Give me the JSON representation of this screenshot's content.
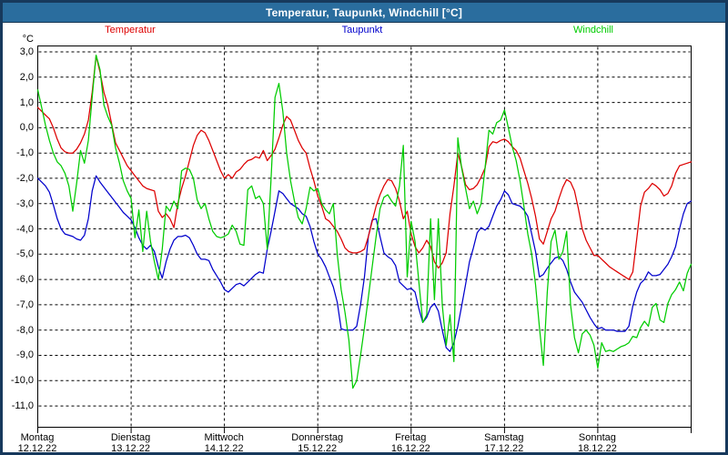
{
  "window": {
    "title": "Temperatur, Taupunkt, Windchill [°C]"
  },
  "colors": {
    "titlebar": "#2a6d9e",
    "titlebar_text": "#ffffff",
    "frame": "#17395c",
    "plot_border": "#000000",
    "grid": "#000000",
    "background": "#ffffff"
  },
  "legend": [
    {
      "label": "Temperatur",
      "color": "#dd0000"
    },
    {
      "label": "Taupunkt",
      "color": "#0000cc"
    },
    {
      "label": "Windchill",
      "color": "#00cc00"
    }
  ],
  "axes": {
    "unit_label": "°C",
    "y_ticks": [
      {
        "label": "3,0",
        "value": 3
      },
      {
        "label": "2,0",
        "value": 2
      },
      {
        "label": "1,0",
        "value": 1
      },
      {
        "label": "0,0",
        "value": 0
      },
      {
        "label": "-1,0",
        "value": -1
      },
      {
        "label": "-2,0",
        "value": -2
      },
      {
        "label": "-3,0",
        "value": -3
      },
      {
        "label": "-4,0",
        "value": -4
      },
      {
        "label": "-5,0",
        "value": -5
      },
      {
        "label": "-6,0",
        "value": -6
      },
      {
        "label": "-7,0",
        "value": -7
      },
      {
        "label": "-8,0",
        "value": -8
      },
      {
        "label": "-9,0",
        "value": -9
      },
      {
        "label": "-10,0",
        "value": -10
      },
      {
        "label": "-11,0",
        "value": -11
      }
    ],
    "x_days": [
      {
        "name": "Montag",
        "date": "12.12.22"
      },
      {
        "name": "Dienstag",
        "date": "13.12.22"
      },
      {
        "name": "Mittwoch",
        "date": "14.12.22"
      },
      {
        "name": "Donnerstag",
        "date": "15.12.22"
      },
      {
        "name": "Freitag",
        "date": "16.12.22"
      },
      {
        "name": "Samstag",
        "date": "17.12.22"
      },
      {
        "name": "Sonntag",
        "date": "18.12.22"
      }
    ]
  },
  "chart_data": {
    "type": "line",
    "title": "Temperatur, Taupunkt, Windchill [°C]",
    "ylabel": "°C",
    "x_unit": "hour",
    "points_per_day": 24,
    "x_range_hours": [
      0,
      168
    ],
    "ylim": [
      -11.9,
      3.25
    ],
    "grid": true,
    "legend_position": "top",
    "series": [
      {
        "name": "Temperatur",
        "color": "#dd0000",
        "values": [
          0.8,
          0.65,
          0.5,
          0.35,
          0,
          -0.45,
          -0.8,
          -0.95,
          -1,
          -1,
          -0.85,
          -0.6,
          -0.25,
          0.3,
          1.4,
          2.85,
          2.2,
          1.4,
          0.9,
          0.15,
          -0.6,
          -0.9,
          -1.2,
          -1.5,
          -1.7,
          -1.9,
          -2.1,
          -2.3,
          -2.4,
          -2.45,
          -2.5,
          -3.3,
          -3.55,
          -3.4,
          -3.6,
          -3.95,
          -3,
          -2.4,
          -1.9,
          -1.3,
          -0.7,
          -0.3,
          -0.1,
          -0.2,
          -0.5,
          -0.9,
          -1.3,
          -1.7,
          -2,
          -1.85,
          -2,
          -1.75,
          -1.65,
          -1.45,
          -1.3,
          -1.25,
          -1.15,
          -1.2,
          -0.9,
          -1.3,
          -1.1,
          -0.85,
          -0.4,
          0.1,
          0.45,
          0.3,
          -0.1,
          -0.5,
          -0.8,
          -1,
          -1.6,
          -2.1,
          -2.7,
          -3.1,
          -3.6,
          -3.7,
          -3.9,
          -4.1,
          -4.4,
          -4.75,
          -4.9,
          -4.95,
          -4.95,
          -4.9,
          -4.8,
          -4.3,
          -3.7,
          -3.1,
          -2.65,
          -2.3,
          -2.05,
          -2.1,
          -2.4,
          -2.9,
          -3.6,
          -3.3,
          -4.2,
          -4.7,
          -4.95,
          -4.75,
          -4.45,
          -4.7,
          -5.3,
          -5.55,
          -5.35,
          -4.95,
          -3.4,
          -2.3,
          -1,
          -1.55,
          -2.25,
          -2.45,
          -2.4,
          -2.25,
          -1.95,
          -1.6,
          -0.75,
          -0.55,
          -0.6,
          -0.5,
          -0.45,
          -0.55,
          -0.75,
          -0.9,
          -1.2,
          -1.7,
          -2.2,
          -2.8,
          -3.5,
          -4.4,
          -4.6,
          -4.1,
          -3.6,
          -3.3,
          -2.8,
          -2.35,
          -2.05,
          -2.15,
          -2.5,
          -3.2,
          -4,
          -4.45,
          -4.75,
          -5.05,
          -5.05,
          -5.2,
          -5.35,
          -5.5,
          -5.6,
          -5.7,
          -5.8,
          -5.9,
          -6,
          -5.7,
          -4.4,
          -3.1,
          -2.55,
          -2.4,
          -2.2,
          -2.3,
          -2.45,
          -2.7,
          -2.6,
          -2.3,
          -1.8,
          -1.5,
          -1.45,
          -1.4,
          -1.35
        ]
      },
      {
        "name": "Taupunkt",
        "color": "#0000cc",
        "values": [
          -2,
          -2.15,
          -2.3,
          -2.55,
          -3.05,
          -3.6,
          -4,
          -4.2,
          -4.25,
          -4.3,
          -4.4,
          -4.45,
          -4.25,
          -3.6,
          -2.5,
          -1.9,
          -2.15,
          -2.35,
          -2.55,
          -2.75,
          -2.95,
          -3.15,
          -3.35,
          -3.5,
          -3.65,
          -3.95,
          -4.35,
          -4.65,
          -4.8,
          -4.65,
          -4.9,
          -5.5,
          -5.95,
          -5.3,
          -4.8,
          -4.45,
          -4.3,
          -4.3,
          -4.25,
          -4.35,
          -4.65,
          -5,
          -5.2,
          -5.2,
          -5.25,
          -5.6,
          -5.85,
          -6.1,
          -6.4,
          -6.5,
          -6.35,
          -6.2,
          -6.15,
          -6.25,
          -6.1,
          -5.95,
          -5.8,
          -5.7,
          -5.75,
          -4.8,
          -4.1,
          -3.3,
          -2.5,
          -2.6,
          -2.8,
          -3,
          -3.1,
          -3.2,
          -3.4,
          -3.5,
          -3.9,
          -4.5,
          -5,
          -5.2,
          -5.5,
          -5.9,
          -6.3,
          -6.9,
          -7.95,
          -8,
          -8,
          -8,
          -7.85,
          -7,
          -5.9,
          -4.3,
          -3.65,
          -3.6,
          -4.3,
          -4.95,
          -5.1,
          -5.2,
          -5.45,
          -6.1,
          -6.25,
          -6.4,
          -6.35,
          -6.5,
          -7.15,
          -7.7,
          -7.5,
          -7.1,
          -6.95,
          -7.25,
          -8,
          -8.7,
          -8.85,
          -8.5,
          -7.85,
          -7.05,
          -6.2,
          -5.3,
          -4.75,
          -4.15,
          -3.95,
          -4.05,
          -3.9,
          -3.5,
          -3.1,
          -2.85,
          -2.5,
          -2.65,
          -3,
          -3.05,
          -3.1,
          -3.25,
          -3.5,
          -4.2,
          -4.9,
          -5.9,
          -5.8,
          -5.55,
          -5.35,
          -5.15,
          -5.1,
          -5.25,
          -5.6,
          -6.1,
          -6.5,
          -6.7,
          -6.9,
          -7.2,
          -7.5,
          -7.75,
          -7.95,
          -7.9,
          -8,
          -8,
          -8,
          -8.05,
          -8.05,
          -8.05,
          -7.85,
          -7.05,
          -6.5,
          -6.15,
          -6,
          -5.7,
          -5.85,
          -5.85,
          -5.8,
          -5.6,
          -5.4,
          -5.1,
          -4.7,
          -4,
          -3.4,
          -3,
          -2.9
        ]
      },
      {
        "name": "Windchill",
        "color": "#00cc00",
        "values": [
          1.5,
          0.8,
          0.1,
          -0.5,
          -1,
          -1.35,
          -1.5,
          -1.8,
          -2.3,
          -3.3,
          -2.2,
          -0.9,
          -1.4,
          -0.5,
          1.2,
          2.87,
          2.3,
          0.9,
          0.45,
          0.1,
          -0.8,
          -1.4,
          -2.1,
          -2.5,
          -2.8,
          -4.35,
          -3.25,
          -4.9,
          -3.3,
          -4.5,
          -5.3,
          -6,
          -4.8,
          -3.1,
          -3.3,
          -2.9,
          -3.2,
          -1.7,
          -1.6,
          -1.65,
          -2,
          -2.85,
          -3.2,
          -3,
          -3.6,
          -4.1,
          -4.3,
          -4.35,
          -4.3,
          -4.2,
          -3.85,
          -4.1,
          -4.6,
          -4.65,
          -2.45,
          -2.3,
          -2.8,
          -2.7,
          -3,
          -4.8,
          -2,
          1.2,
          1.75,
          0.65,
          -1,
          -2.1,
          -2.9,
          -3.55,
          -3.8,
          -3.2,
          -2.35,
          -2.5,
          -2.4,
          -3,
          -3.25,
          -3.4,
          -3,
          -5,
          -6.4,
          -7.3,
          -8.4,
          -10.3,
          -10,
          -9,
          -7.9,
          -6.7,
          -5.5,
          -4.3,
          -3.2,
          -2.75,
          -2.65,
          -2.9,
          -3.1,
          -2.3,
          -0.7,
          -5.9,
          -3.7,
          -4.5,
          -6.1,
          -7.7,
          -7.4,
          -3.6,
          -6.8,
          -3.6,
          -7,
          -8.6,
          -7.4,
          -9.25,
          -0.4,
          -1.6,
          -2.4,
          -3.2,
          -2.9,
          -3.4,
          -3,
          -1.6,
          -0.1,
          -0.25,
          0.2,
          0.3,
          0.7,
          0,
          -0.75,
          -1.3,
          -2.1,
          -3.1,
          -4.2,
          -5,
          -6.2,
          -7.9,
          -9.4,
          -6.5,
          -4.5,
          -4.05,
          -5.2,
          -4.9,
          -4.1,
          -7,
          -8.3,
          -8.9,
          -8.15,
          -8,
          -8.2,
          -8.6,
          -9.5,
          -8.5,
          -8.85,
          -8.8,
          -8.85,
          -8.75,
          -8.65,
          -8.6,
          -8.5,
          -8.25,
          -8.3,
          -7.9,
          -7.65,
          -7.85,
          -7.1,
          -6.95,
          -7.6,
          -7.7,
          -6.95,
          -6.6,
          -6.4,
          -6.1,
          -6.45,
          -5.75,
          -5.4
        ]
      }
    ]
  }
}
